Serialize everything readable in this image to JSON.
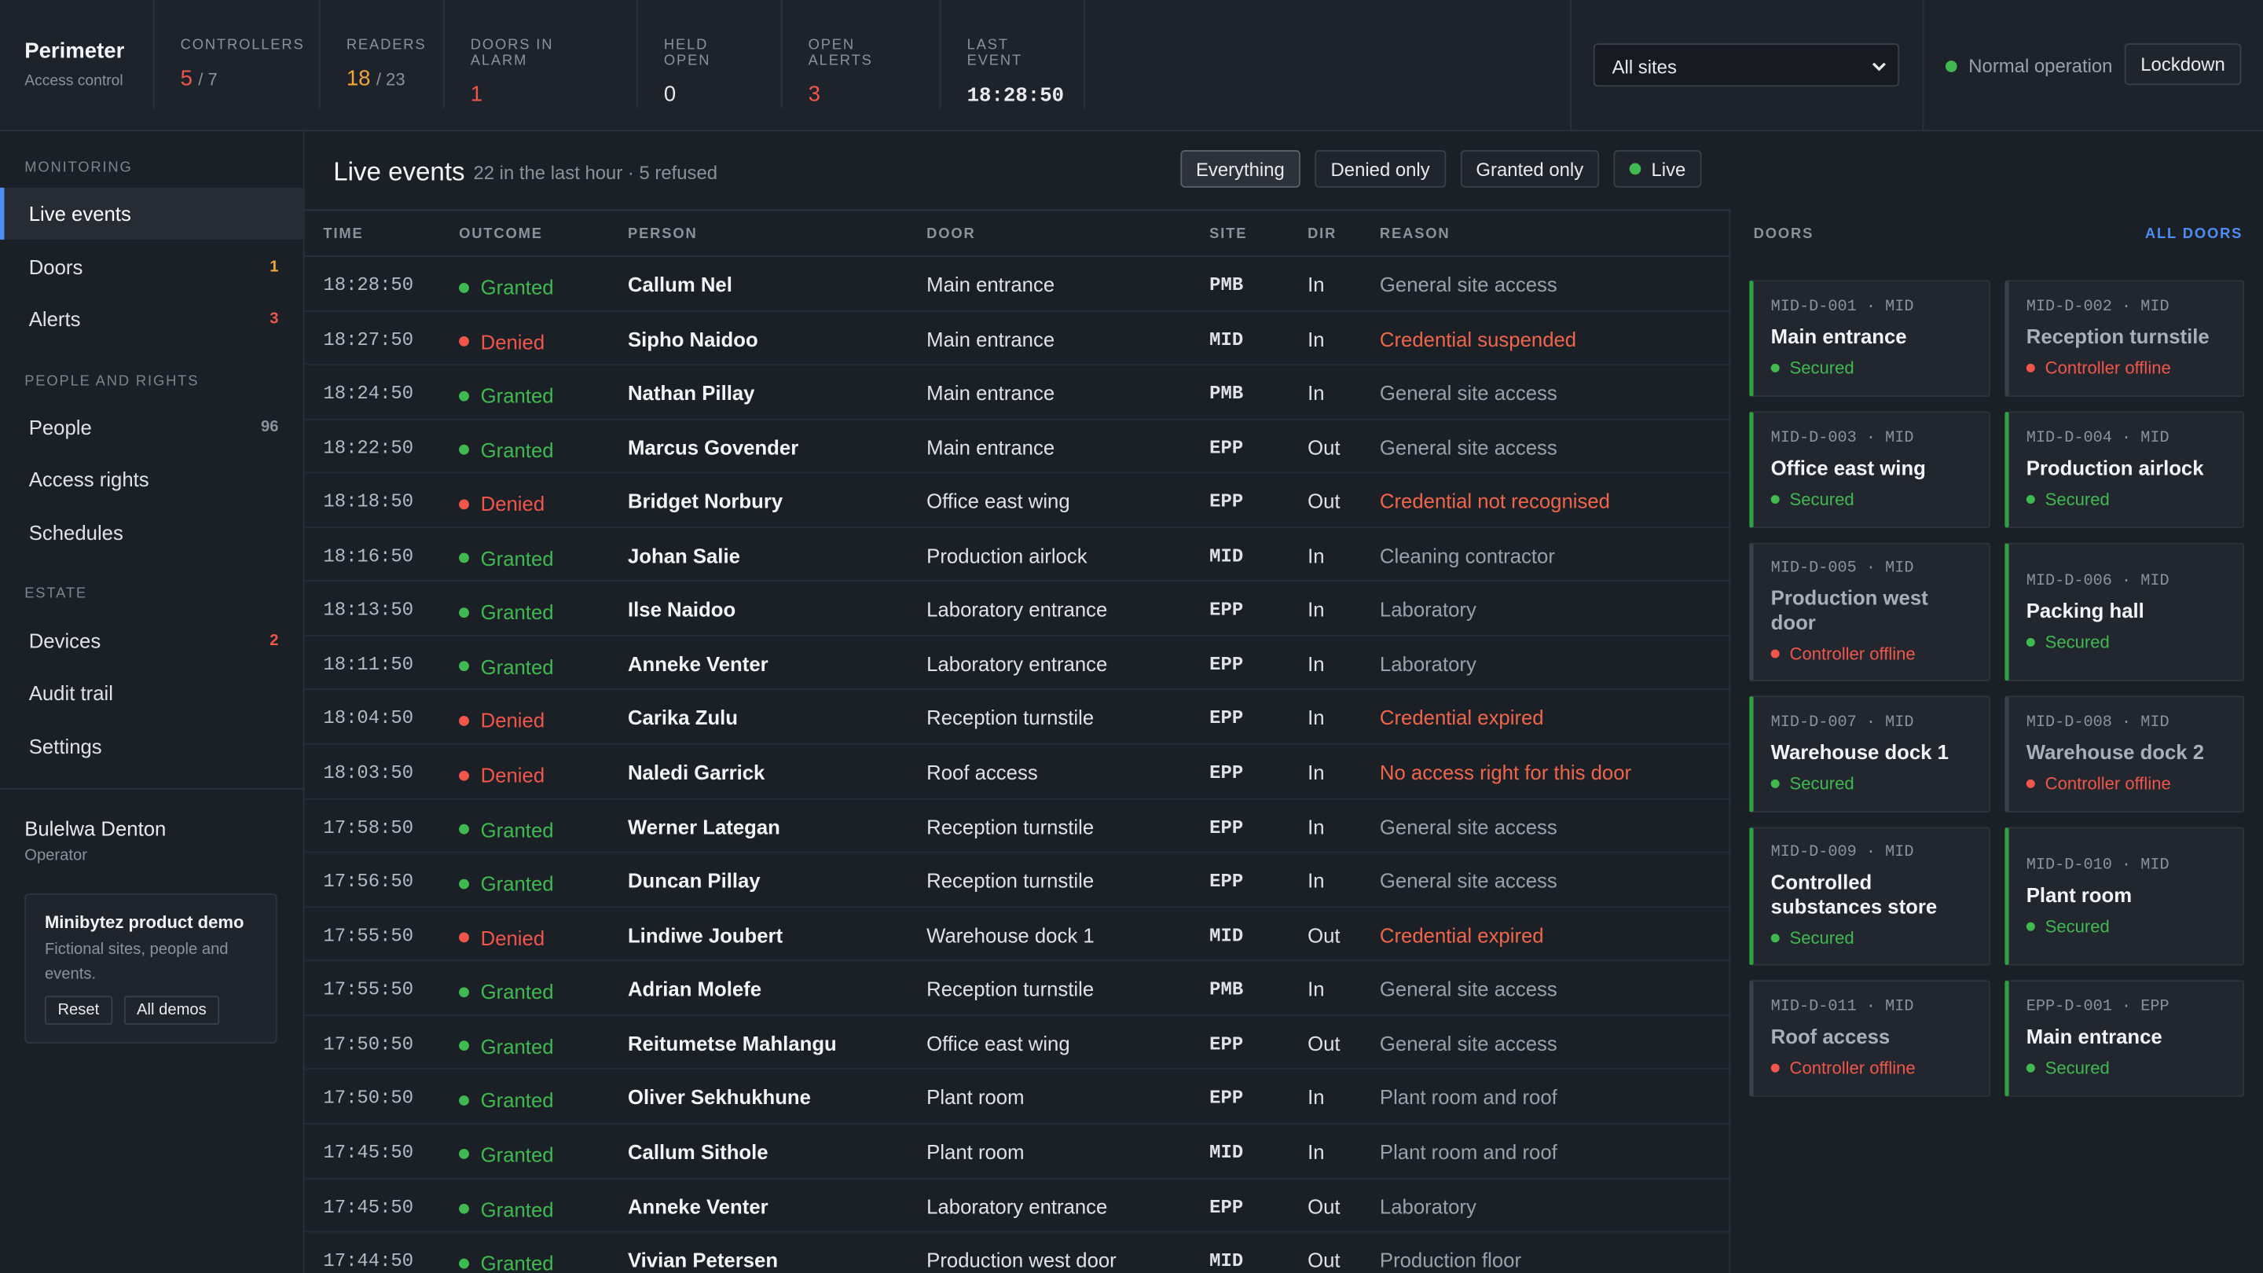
{
  "brand": {
    "name": "Perimeter",
    "sub": "Access control"
  },
  "stats": [
    {
      "label": "CONTROLLERS",
      "value": "5",
      "total": "/ 7",
      "color": "#f0564a"
    },
    {
      "label": "READERS",
      "value": "18",
      "total": "/ 23",
      "color": "#f0a63a"
    },
    {
      "label": "DOORS IN ALARM",
      "value": "1",
      "color": "#f0564a"
    },
    {
      "label": "HELD OPEN",
      "value": "0",
      "color": "#e8eaed"
    },
    {
      "label": "OPEN ALERTS",
      "value": "3",
      "color": "#f0564a"
    },
    {
      "label": "LAST EVENT",
      "value": "18:28:50",
      "color": "#e8eaed",
      "mono": true
    }
  ],
  "site_select": "All sites",
  "status": {
    "text": "Normal operation",
    "color": "#3fb950"
  },
  "lockdown": "Lockdown",
  "nav": [
    {
      "section": "MONITORING",
      "items": [
        {
          "label": "Live events",
          "active": true
        },
        {
          "label": "Doors",
          "count": "1",
          "color": "#f0a63a"
        },
        {
          "label": "Alerts",
          "count": "3",
          "color": "#f0564a"
        }
      ]
    },
    {
      "section": "PEOPLE AND RIGHTS",
      "items": [
        {
          "label": "People",
          "count": "96",
          "color": "#8b929c"
        },
        {
          "label": "Access rights"
        },
        {
          "label": "Schedules"
        }
      ]
    },
    {
      "section": "ESTATE",
      "items": [
        {
          "label": "Devices",
          "count": "2",
          "color": "#f0564a"
        },
        {
          "label": "Audit trail"
        },
        {
          "label": "Settings"
        }
      ]
    }
  ],
  "user": {
    "name": "Bulelwa Denton",
    "role": "Operator"
  },
  "demo": {
    "title": "Minibytez product demo",
    "text": "Fictional sites, people and events.",
    "buttons": [
      "Reset",
      "All demos"
    ]
  },
  "main": {
    "title": "Live events",
    "subtitle": "22 in the last hour · 5 refused",
    "filters": [
      {
        "label": "Everything",
        "active": true
      },
      {
        "label": "Denied only"
      },
      {
        "label": "Granted only"
      },
      {
        "label": "Live",
        "dot": "#3fb950"
      }
    ]
  },
  "table": {
    "columns": [
      "TIME",
      "OUTCOME",
      "PERSON",
      "DOOR",
      "SITE",
      "DIR",
      "REASON"
    ],
    "rows": [
      {
        "cells": [
          "18:28:50",
          "Granted",
          "Callum Nel",
          "Main entrance",
          "PMB",
          "In",
          "General site access"
        ],
        "color": "#3fb950",
        "reason_color": "#9aa1ab"
      },
      {
        "cells": [
          "18:27:50",
          "Denied",
          "Sipho Naidoo",
          "Main entrance",
          "MID",
          "In",
          "Credential suspended"
        ],
        "color": "#f0564a",
        "reason_color": "#f0664a"
      },
      {
        "cells": [
          "18:24:50",
          "Granted",
          "Nathan Pillay",
          "Main entrance",
          "PMB",
          "In",
          "General site access"
        ],
        "color": "#3fb950",
        "reason_color": "#9aa1ab"
      },
      {
        "cells": [
          "18:22:50",
          "Granted",
          "Marcus Govender",
          "Main entrance",
          "EPP",
          "Out",
          "General site access"
        ],
        "color": "#3fb950",
        "reason_color": "#9aa1ab"
      },
      {
        "cells": [
          "18:18:50",
          "Denied",
          "Bridget Norbury",
          "Office east wing",
          "EPP",
          "Out",
          "Credential not recognised"
        ],
        "color": "#f0564a",
        "reason_color": "#f0664a"
      },
      {
        "cells": [
          "18:16:50",
          "Granted",
          "Johan Salie",
          "Production airlock",
          "MID",
          "In",
          "Cleaning contractor"
        ],
        "color": "#3fb950",
        "reason_color": "#9aa1ab"
      },
      {
        "cells": [
          "18:13:50",
          "Granted",
          "Ilse Naidoo",
          "Laboratory entrance",
          "EPP",
          "In",
          "Laboratory"
        ],
        "color": "#3fb950",
        "reason_color": "#9aa1ab"
      },
      {
        "cells": [
          "18:11:50",
          "Granted",
          "Anneke Venter",
          "Laboratory entrance",
          "EPP",
          "In",
          "Laboratory"
        ],
        "color": "#3fb950",
        "reason_color": "#9aa1ab"
      },
      {
        "cells": [
          "18:04:50",
          "Denied",
          "Carika Zulu",
          "Reception turnstile",
          "EPP",
          "In",
          "Credential expired"
        ],
        "color": "#f0564a",
        "reason_color": "#f0664a"
      },
      {
        "cells": [
          "18:03:50",
          "Denied",
          "Naledi Garrick",
          "Roof access",
          "EPP",
          "In",
          "No access right for this door"
        ],
        "color": "#f0564a",
        "reason_color": "#f0664a"
      },
      {
        "cells": [
          "17:58:50",
          "Granted",
          "Werner Lategan",
          "Reception turnstile",
          "EPP",
          "In",
          "General site access"
        ],
        "color": "#3fb950",
        "reason_color": "#9aa1ab"
      },
      {
        "cells": [
          "17:56:50",
          "Granted",
          "Duncan Pillay",
          "Reception turnstile",
          "EPP",
          "In",
          "General site access"
        ],
        "color": "#3fb950",
        "reason_color": "#9aa1ab"
      },
      {
        "cells": [
          "17:55:50",
          "Denied",
          "Lindiwe Joubert",
          "Warehouse dock 1",
          "MID",
          "Out",
          "Credential expired"
        ],
        "color": "#f0564a",
        "reason_color": "#f0664a"
      },
      {
        "cells": [
          "17:55:50",
          "Granted",
          "Adrian Molefe",
          "Reception turnstile",
          "PMB",
          "In",
          "General site access"
        ],
        "color": "#3fb950",
        "reason_color": "#9aa1ab"
      },
      {
        "cells": [
          "17:50:50",
          "Granted",
          "Reitumetse Mahlangu",
          "Office east wing",
          "EPP",
          "Out",
          "General site access"
        ],
        "color": "#3fb950",
        "reason_color": "#9aa1ab"
      },
      {
        "cells": [
          "17:50:50",
          "Granted",
          "Oliver Sekhukhune",
          "Plant room",
          "EPP",
          "In",
          "Plant room and roof"
        ],
        "color": "#3fb950",
        "reason_color": "#9aa1ab"
      },
      {
        "cells": [
          "17:45:50",
          "Granted",
          "Callum Sithole",
          "Plant room",
          "MID",
          "In",
          "Plant room and roof"
        ],
        "color": "#3fb950",
        "reason_color": "#9aa1ab"
      },
      {
        "cells": [
          "17:45:50",
          "Granted",
          "Anneke Venter",
          "Laboratory entrance",
          "EPP",
          "Out",
          "Laboratory"
        ],
        "color": "#3fb950",
        "reason_color": "#9aa1ab"
      },
      {
        "cells": [
          "17:44:50",
          "Granted",
          "Vivian Petersen",
          "Production west door",
          "MID",
          "Out",
          "Production floor"
        ],
        "color": "#3fb950",
        "reason_color": "#9aa1ab"
      }
    ]
  },
  "doors_panel": {
    "title": "DOORS",
    "link": "ALL DOORS",
    "doors": [
      {
        "code": "MID-D-001 · MID",
        "name": "Main entrance",
        "status": "Secured",
        "color": "#3fb950",
        "accent": "#2ea043",
        "tone": "#f2f4f7"
      },
      {
        "code": "MID-D-002 · MID",
        "name": "Reception turnstile",
        "status": "Controller offline",
        "color": "#f0564a",
        "accent": "#3a4049",
        "tone": "#a9afb8"
      },
      {
        "code": "MID-D-003 · MID",
        "name": "Office east wing",
        "status": "Secured",
        "color": "#3fb950",
        "accent": "#2ea043",
        "tone": "#f2f4f7"
      },
      {
        "code": "MID-D-004 · MID",
        "name": "Production airlock",
        "status": "Secured",
        "color": "#3fb950",
        "accent": "#2ea043",
        "tone": "#f2f4f7"
      },
      {
        "code": "MID-D-005 · MID",
        "name": "Production west door",
        "status": "Controller offline",
        "color": "#f0564a",
        "accent": "#3a4049",
        "tone": "#a9afb8"
      },
      {
        "code": "MID-D-006 · MID",
        "name": "Packing hall",
        "status": "Secured",
        "color": "#3fb950",
        "accent": "#2ea043",
        "tone": "#f2f4f7"
      },
      {
        "code": "MID-D-007 · MID",
        "name": "Warehouse dock 1",
        "status": "Secured",
        "color": "#3fb950",
        "accent": "#2ea043",
        "tone": "#f2f4f7"
      },
      {
        "code": "MID-D-008 · MID",
        "name": "Warehouse dock 2",
        "status": "Controller offline",
        "color": "#f0564a",
        "accent": "#3a4049",
        "tone": "#a9afb8"
      },
      {
        "code": "MID-D-009 · MID",
        "name": "Controlled substances store",
        "status": "Secured",
        "color": "#3fb950",
        "accent": "#2ea043",
        "tone": "#f2f4f7"
      },
      {
        "code": "MID-D-010 · MID",
        "name": "Plant room",
        "status": "Secured",
        "color": "#3fb950",
        "accent": "#2ea043",
        "tone": "#f2f4f7"
      },
      {
        "code": "MID-D-011 · MID",
        "name": "Roof access",
        "status": "Controller offline",
        "color": "#f0564a",
        "accent": "#3a4049",
        "tone": "#a9afb8"
      },
      {
        "code": "EPP-D-001 · EPP",
        "name": "Main entrance",
        "status": "Secured",
        "color": "#3fb950",
        "accent": "#2ea043",
        "tone": "#f2f4f7"
      }
    ]
  }
}
